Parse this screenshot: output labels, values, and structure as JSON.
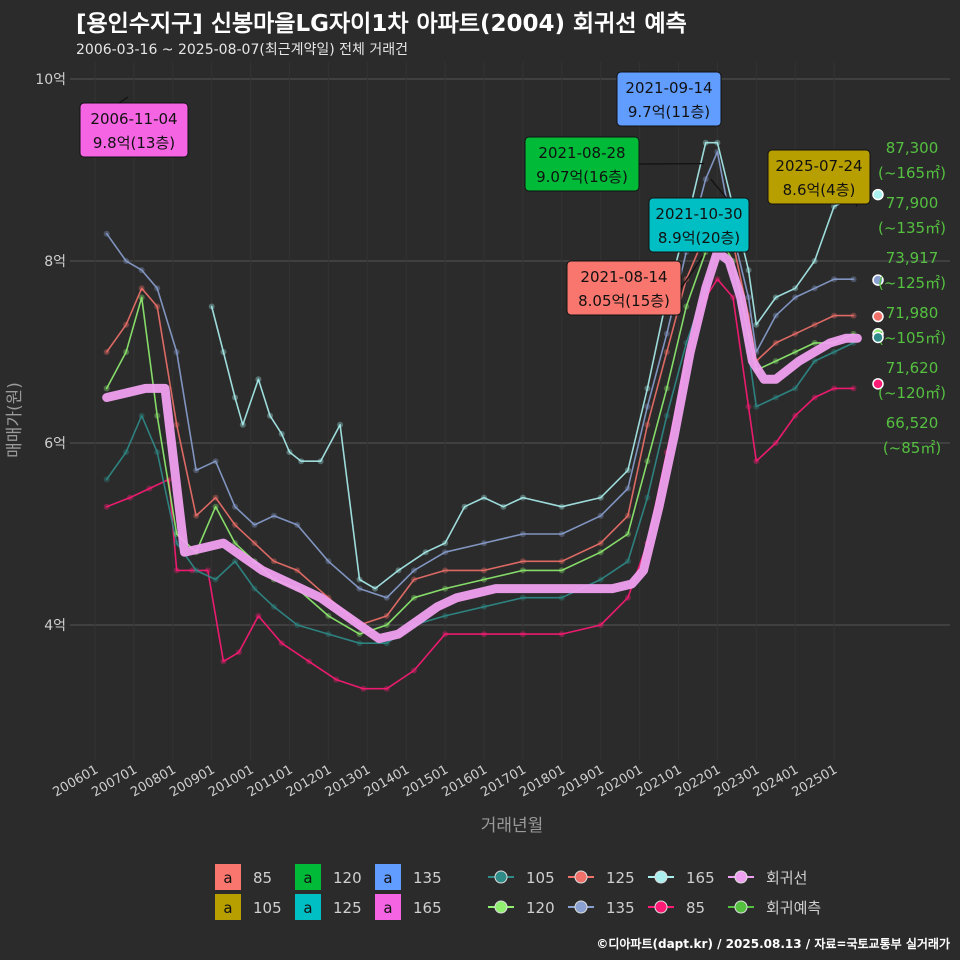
{
  "header": {
    "title": "[용인수지구] 신봉마을LG자이1차 아파트(2004) 회귀선 예측",
    "subtitle": "2006-03-16 ~ 2025-08-07(최근계약일) 전체 거래건"
  },
  "credit": "©디아파트(dapt.kr) / 2025.08.13 / 자료=국토교통부 실거래가",
  "colors": {
    "s85": "#ff1a75",
    "s105": "#2e8b88",
    "s120": "#90ee70",
    "s125": "#f0706a",
    "s135": "#8aa0d0",
    "s165": "#aaf0ee",
    "regression": "#f0a0f0",
    "forecast": "#55c040",
    "l85": "#f8766d",
    "l105": "#b79f00",
    "l120": "#00ba38",
    "l125": "#00bfc4",
    "l135": "#619cff",
    "l165": "#f564e3"
  },
  "chart_data": {
    "type": "line",
    "xlabel": "거래년월",
    "ylabel": "매매가(원)",
    "ylim": [
      2.5,
      10.2
    ],
    "y_ticks": [
      {
        "value": 4,
        "label": "4억"
      },
      {
        "value": 6,
        "label": "6억"
      },
      {
        "value": 8,
        "label": "8억"
      },
      {
        "value": 10,
        "label": "10억"
      }
    ],
    "x_ticks": [
      "200601",
      "200701",
      "200801",
      "200901",
      "201001",
      "201101",
      "201201",
      "201301",
      "201401",
      "201501",
      "201601",
      "201701",
      "201801",
      "201901",
      "202001",
      "202101",
      "202201",
      "202301",
      "202401",
      "202501"
    ],
    "grid": true,
    "series": [
      {
        "name": "85",
        "key": "s85",
        "x": [
          2006.3,
          2006.9,
          2007.4,
          2007.9,
          2008.1,
          2008.5,
          2008.9,
          2009.3,
          2009.7,
          2010.2,
          2010.8,
          2011.5,
          2012.2,
          2012.9,
          2013.5,
          2014.2,
          2015.0,
          2016.0,
          2017.0,
          2018.0,
          2019.0,
          2019.7,
          2020.2,
          2020.7,
          2021.2,
          2021.7,
          2022.0,
          2022.4,
          2022.8,
          2023.0,
          2023.5,
          2024.0,
          2024.5,
          2025.0,
          2025.5
        ],
        "values": [
          5.3,
          5.4,
          5.5,
          5.6,
          4.6,
          4.6,
          4.6,
          3.6,
          3.7,
          4.1,
          3.8,
          3.6,
          3.4,
          3.3,
          3.3,
          3.5,
          3.9,
          3.9,
          3.9,
          3.9,
          4.0,
          4.3,
          4.9,
          5.9,
          6.9,
          7.6,
          7.8,
          7.6,
          6.4,
          5.8,
          6.0,
          6.3,
          6.5,
          6.6,
          6.6
        ]
      },
      {
        "name": "105",
        "key": "s105",
        "x": [
          2006.3,
          2006.8,
          2007.2,
          2007.6,
          2008.1,
          2008.6,
          2009.1,
          2009.6,
          2010.1,
          2010.6,
          2011.2,
          2012.0,
          2012.8,
          2013.5,
          2014.2,
          2015.0,
          2016.0,
          2017.0,
          2018.0,
          2019.0,
          2019.7,
          2020.2,
          2020.7,
          2021.2,
          2021.7,
          2022.0,
          2022.4,
          2022.8,
          2023.0,
          2023.5,
          2024.0,
          2024.5,
          2025.0,
          2025.5
        ],
        "values": [
          5.6,
          5.9,
          6.3,
          5.9,
          4.9,
          4.6,
          4.5,
          4.7,
          4.4,
          4.2,
          4.0,
          3.9,
          3.8,
          3.8,
          4.0,
          4.1,
          4.2,
          4.3,
          4.3,
          4.5,
          4.7,
          5.4,
          6.3,
          7.1,
          7.7,
          8.2,
          7.8,
          7.0,
          6.4,
          6.5,
          6.6,
          6.9,
          7.0,
          7.1
        ]
      },
      {
        "name": "120",
        "key": "s120",
        "x": [
          2006.3,
          2006.8,
          2007.2,
          2007.6,
          2008.1,
          2008.6,
          2009.1,
          2009.6,
          2010.1,
          2010.6,
          2011.2,
          2012.0,
          2012.8,
          2013.5,
          2014.2,
          2015.0,
          2016.0,
          2017.0,
          2018.0,
          2019.0,
          2019.7,
          2020.2,
          2020.7,
          2021.2,
          2021.7,
          2022.0,
          2022.4,
          2022.8,
          2023.0,
          2023.5,
          2024.0,
          2024.5,
          2025.0,
          2025.5
        ],
        "values": [
          6.6,
          7.0,
          7.6,
          6.3,
          5.0,
          4.8,
          5.3,
          4.9,
          4.7,
          4.5,
          4.4,
          4.1,
          3.9,
          4.0,
          4.3,
          4.4,
          4.5,
          4.6,
          4.6,
          4.8,
          5.0,
          5.8,
          6.6,
          7.5,
          8.1,
          8.3,
          8.0,
          7.2,
          6.8,
          6.9,
          7.0,
          7.1,
          7.1,
          7.2
        ]
      },
      {
        "name": "125",
        "key": "s125",
        "x": [
          2006.3,
          2006.8,
          2007.2,
          2007.6,
          2008.1,
          2008.6,
          2009.1,
          2009.6,
          2010.1,
          2010.6,
          2011.2,
          2012.0,
          2012.8,
          2013.5,
          2014.2,
          2015.0,
          2016.0,
          2017.0,
          2018.0,
          2019.0,
          2019.7,
          2020.2,
          2020.7,
          2021.2,
          2021.7,
          2022.0,
          2022.4,
          2022.8,
          2023.0,
          2023.5,
          2024.0,
          2024.5,
          2025.0,
          2025.5
        ],
        "values": [
          7.0,
          7.3,
          7.7,
          7.5,
          6.2,
          5.2,
          5.4,
          5.1,
          4.9,
          4.7,
          4.6,
          4.3,
          4.0,
          4.1,
          4.5,
          4.6,
          4.6,
          4.7,
          4.7,
          4.9,
          5.2,
          6.2,
          7.0,
          7.8,
          8.3,
          8.4,
          8.2,
          7.4,
          6.9,
          7.1,
          7.2,
          7.3,
          7.4,
          7.4
        ]
      },
      {
        "name": "135",
        "key": "s135",
        "x": [
          2006.3,
          2006.8,
          2007.2,
          2007.6,
          2008.1,
          2008.6,
          2009.1,
          2009.6,
          2010.1,
          2010.6,
          2011.2,
          2012.0,
          2012.8,
          2013.5,
          2014.2,
          2015.0,
          2016.0,
          2017.0,
          2018.0,
          2019.0,
          2019.7,
          2020.2,
          2020.7,
          2021.2,
          2021.7,
          2022.0,
          2022.4,
          2022.8,
          2023.0,
          2023.5,
          2024.0,
          2024.5,
          2025.0,
          2025.5
        ],
        "values": [
          8.3,
          8.0,
          7.9,
          7.7,
          7.0,
          5.7,
          5.8,
          5.3,
          5.1,
          5.2,
          5.1,
          4.7,
          4.4,
          4.3,
          4.6,
          4.8,
          4.9,
          5.0,
          5.0,
          5.2,
          5.5,
          6.4,
          7.2,
          8.1,
          8.9,
          9.2,
          8.3,
          7.6,
          7.0,
          7.4,
          7.6,
          7.7,
          7.8,
          7.8
        ]
      },
      {
        "name": "165",
        "key": "s165",
        "x": [
          2009.0,
          2009.3,
          2009.6,
          2009.8,
          2010.2,
          2010.5,
          2010.8,
          2011.0,
          2011.3,
          2011.8,
          2012.3,
          2012.8,
          2013.2,
          2013.8,
          2014.5,
          2015.0,
          2015.5,
          2016.0,
          2016.5,
          2017.0,
          2018.0,
          2019.0,
          2019.7,
          2020.2,
          2020.7,
          2021.2,
          2021.7,
          2022.0,
          2022.4,
          2022.8,
          2023.0,
          2023.5,
          2024.0,
          2024.5,
          2025.0,
          2025.5
        ],
        "values": [
          7.5,
          7.0,
          6.5,
          6.2,
          6.7,
          6.3,
          6.1,
          5.9,
          5.8,
          5.8,
          6.2,
          4.5,
          4.4,
          4.6,
          4.8,
          4.9,
          5.3,
          5.4,
          5.3,
          5.4,
          5.3,
          5.4,
          5.7,
          6.6,
          7.6,
          8.4,
          9.3,
          9.3,
          8.6,
          7.9,
          7.3,
          7.6,
          7.7,
          8.0,
          8.6,
          8.7
        ]
      },
      {
        "name": "회귀선",
        "key": "regression",
        "x": [
          2006.3,
          2006.8,
          2007.3,
          2007.8,
          2008.3,
          2008.8,
          2009.3,
          2009.8,
          2010.3,
          2010.8,
          2011.3,
          2011.8,
          2012.3,
          2012.8,
          2013.3,
          2013.8,
          2014.3,
          2014.8,
          2015.3,
          2015.8,
          2016.3,
          2016.8,
          2017.3,
          2017.8,
          2018.3,
          2018.8,
          2019.3,
          2019.8,
          2020.1,
          2020.5,
          2020.9,
          2021.3,
          2021.7,
          2022.0,
          2022.3,
          2022.6,
          2022.9,
          2023.2,
          2023.5,
          2023.8,
          2024.1,
          2024.5,
          2024.9,
          2025.3,
          2025.6
        ],
        "values": [
          6.5,
          6.55,
          6.6,
          6.6,
          4.8,
          4.85,
          4.9,
          4.75,
          4.6,
          4.5,
          4.4,
          4.3,
          4.15,
          4.0,
          3.85,
          3.9,
          4.05,
          4.2,
          4.3,
          4.35,
          4.4,
          4.4,
          4.4,
          4.4,
          4.4,
          4.4,
          4.4,
          4.45,
          4.6,
          5.3,
          6.1,
          7.0,
          7.7,
          8.1,
          8.0,
          7.6,
          6.9,
          6.7,
          6.7,
          6.8,
          6.9,
          7.0,
          7.1,
          7.15,
          7.15
        ]
      }
    ],
    "labels": [
      {
        "date": "2006-11-04",
        "value": 9.8,
        "text": "9.8억(13층)",
        "color": "l165"
      },
      {
        "date": "2021-09-14",
        "value": 9.7,
        "text": "9.7억(11층)",
        "color": "l135"
      },
      {
        "date": "2021-08-28",
        "value": 9.07,
        "text": "9.07억(16층)",
        "color": "l120"
      },
      {
        "date": "2021-10-30",
        "value": 8.9,
        "text": "8.9억(20층)",
        "color": "l125"
      },
      {
        "date": "2021-08-14",
        "value": 8.05,
        "text": "8.05억(15층)",
        "color": "l85"
      },
      {
        "date": "2025-07-24",
        "value": 8.6,
        "text": "8.6억(4층)",
        "color": "l105"
      }
    ],
    "forecast": [
      {
        "value": 8.73,
        "amount": "87,300",
        "area": "(~165㎡)",
        "key": "s165"
      },
      {
        "value": 7.79,
        "amount": "77,900",
        "area": "(~135㎡)",
        "key": "s135"
      },
      {
        "value": 7.39,
        "amount": "73,917",
        "area": "(~125㎡)",
        "key": "s125"
      },
      {
        "value": 7.2,
        "amount": "71,980",
        "area": "(~105㎡)",
        "key": "s120"
      },
      {
        "value": 7.16,
        "amount": "71,620",
        "area": "(~120㎡)",
        "key": "s105"
      },
      {
        "value": 6.65,
        "amount": "66,520",
        "area": "(~85㎡)",
        "key": "s85"
      }
    ],
    "legend": {
      "placement": "bottom",
      "label_items": [
        {
          "glyph": "a",
          "text": "85",
          "color": "l85"
        },
        {
          "glyph": "a",
          "text": "105",
          "color": "l105"
        },
        {
          "glyph": "a",
          "text": "120",
          "color": "l120"
        },
        {
          "glyph": "a",
          "text": "125",
          "color": "l125"
        },
        {
          "glyph": "a",
          "text": "135",
          "color": "l135"
        },
        {
          "glyph": "a",
          "text": "165",
          "color": "l165"
        }
      ],
      "line_items": [
        {
          "text": "105",
          "color": "s105"
        },
        {
          "text": "120",
          "color": "s120"
        },
        {
          "text": "125",
          "color": "s125"
        },
        {
          "text": "135",
          "color": "s135"
        },
        {
          "text": "165",
          "color": "s165"
        },
        {
          "text": "85",
          "color": "s85"
        },
        {
          "text": "회귀선",
          "color": "regression"
        },
        {
          "text": "회귀예측",
          "color": "forecast"
        }
      ]
    }
  }
}
